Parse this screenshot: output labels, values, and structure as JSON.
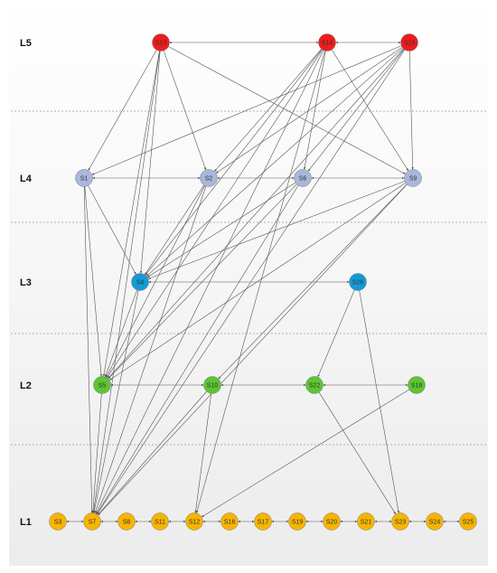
{
  "levels": [
    {
      "id": "L5",
      "label": "L5"
    },
    {
      "id": "L4",
      "label": "L4"
    },
    {
      "id": "L3",
      "label": "L3"
    },
    {
      "id": "L2",
      "label": "L2"
    },
    {
      "id": "L1",
      "label": "L1"
    }
  ],
  "colors": {
    "L5": "#ee1c1c",
    "L4": "#a8b7dc",
    "L3": "#139bd9",
    "L2": "#5cc632",
    "L1": "#f7b400",
    "edge": "#555555",
    "band_top": "#ffffff",
    "band_bottom": "#ececec",
    "separator": "#9a9a9a"
  },
  "nodes": [
    {
      "id": "S13",
      "level": "L5",
      "label": "S13"
    },
    {
      "id": "S14",
      "level": "L5",
      "label": "S14"
    },
    {
      "id": "S15",
      "level": "L5",
      "label": "S15"
    },
    {
      "id": "S1",
      "level": "L4",
      "label": "S1"
    },
    {
      "id": "S2",
      "level": "L4",
      "label": "S2"
    },
    {
      "id": "S6",
      "level": "L4",
      "label": "S6"
    },
    {
      "id": "S9",
      "level": "L4",
      "label": "S9"
    },
    {
      "id": "S4",
      "level": "L3",
      "label": "S4"
    },
    {
      "id": "S26",
      "level": "L3",
      "label": "S26"
    },
    {
      "id": "S5",
      "level": "L2",
      "label": "S5"
    },
    {
      "id": "S10",
      "level": "L2",
      "label": "S10"
    },
    {
      "id": "S22",
      "level": "L2",
      "label": "S22"
    },
    {
      "id": "S18",
      "level": "L2",
      "label": "S18"
    },
    {
      "id": "S3",
      "level": "L1",
      "label": "S3"
    },
    {
      "id": "S7",
      "level": "L1",
      "label": "S7"
    },
    {
      "id": "S8",
      "level": "L1",
      "label": "S8"
    },
    {
      "id": "S11",
      "level": "L1",
      "label": "S11"
    },
    {
      "id": "S12",
      "level": "L1",
      "label": "S12"
    },
    {
      "id": "S16",
      "level": "L1",
      "label": "S16"
    },
    {
      "id": "S17",
      "level": "L1",
      "label": "S17"
    },
    {
      "id": "S19",
      "level": "L1",
      "label": "S19"
    },
    {
      "id": "S20",
      "level": "L1",
      "label": "S20"
    },
    {
      "id": "S21",
      "level": "L1",
      "label": "S21"
    },
    {
      "id": "S23",
      "level": "L1",
      "label": "S23"
    },
    {
      "id": "S24",
      "level": "L1",
      "label": "S24"
    },
    {
      "id": "S25",
      "level": "L1",
      "label": "S25"
    }
  ],
  "edges": [
    {
      "from": "S13",
      "to": "S14",
      "bidir": true
    },
    {
      "from": "S14",
      "to": "S15",
      "bidir": true
    },
    {
      "from": "S13",
      "to": "S1"
    },
    {
      "from": "S13",
      "to": "S2"
    },
    {
      "from": "S13",
      "to": "S9"
    },
    {
      "from": "S13",
      "to": "S4"
    },
    {
      "from": "S13",
      "to": "S5"
    },
    {
      "from": "S13",
      "to": "S7"
    },
    {
      "from": "S14",
      "to": "S2"
    },
    {
      "from": "S14",
      "to": "S6"
    },
    {
      "from": "S14",
      "to": "S9"
    },
    {
      "from": "S14",
      "to": "S4"
    },
    {
      "from": "S14",
      "to": "S5"
    },
    {
      "from": "S14",
      "to": "S7"
    },
    {
      "from": "S14",
      "to": "S12"
    },
    {
      "from": "S15",
      "to": "S1"
    },
    {
      "from": "S15",
      "to": "S2"
    },
    {
      "from": "S15",
      "to": "S6"
    },
    {
      "from": "S15",
      "to": "S9"
    },
    {
      "from": "S15",
      "to": "S4"
    },
    {
      "from": "S15",
      "to": "S5"
    },
    {
      "from": "S15",
      "to": "S7"
    },
    {
      "from": "S1",
      "to": "S2",
      "bidir": true
    },
    {
      "from": "S2",
      "to": "S6",
      "bidir": true
    },
    {
      "from": "S6",
      "to": "S9",
      "bidir": true
    },
    {
      "from": "S1",
      "to": "S4"
    },
    {
      "from": "S1",
      "to": "S5"
    },
    {
      "from": "S1",
      "to": "S7"
    },
    {
      "from": "S2",
      "to": "S4"
    },
    {
      "from": "S2",
      "to": "S5"
    },
    {
      "from": "S2",
      "to": "S7"
    },
    {
      "from": "S6",
      "to": "S4"
    },
    {
      "from": "S6",
      "to": "S5"
    },
    {
      "from": "S6",
      "to": "S7"
    },
    {
      "from": "S9",
      "to": "S4"
    },
    {
      "from": "S9",
      "to": "S5"
    },
    {
      "from": "S9",
      "to": "S10"
    },
    {
      "from": "S9",
      "to": "S7"
    },
    {
      "from": "S4",
      "to": "S26",
      "bidir": true
    },
    {
      "from": "S4",
      "to": "S5"
    },
    {
      "from": "S4",
      "to": "S7"
    },
    {
      "from": "S26",
      "to": "S22"
    },
    {
      "from": "S26",
      "to": "S23"
    },
    {
      "from": "S5",
      "to": "S10",
      "bidir": true
    },
    {
      "from": "S10",
      "to": "S22",
      "bidir": true
    },
    {
      "from": "S22",
      "to": "S18",
      "bidir": true
    },
    {
      "from": "S5",
      "to": "S7"
    },
    {
      "from": "S10",
      "to": "S7"
    },
    {
      "from": "S10",
      "to": "S12"
    },
    {
      "from": "S22",
      "to": "S23"
    },
    {
      "from": "S18",
      "to": "S12"
    },
    {
      "from": "S3",
      "to": "S7",
      "bidir": true
    },
    {
      "from": "S7",
      "to": "S8",
      "bidir": true
    },
    {
      "from": "S8",
      "to": "S11",
      "bidir": true
    },
    {
      "from": "S11",
      "to": "S12",
      "bidir": true
    },
    {
      "from": "S12",
      "to": "S16",
      "bidir": true
    },
    {
      "from": "S16",
      "to": "S17",
      "bidir": true
    },
    {
      "from": "S17",
      "to": "S19",
      "bidir": true
    },
    {
      "from": "S19",
      "to": "S20",
      "bidir": true
    },
    {
      "from": "S20",
      "to": "S21",
      "bidir": true
    },
    {
      "from": "S21",
      "to": "S23",
      "bidir": true
    },
    {
      "from": "S23",
      "to": "S24",
      "bidir": true
    },
    {
      "from": "S24",
      "to": "S25",
      "bidir": true
    }
  ]
}
